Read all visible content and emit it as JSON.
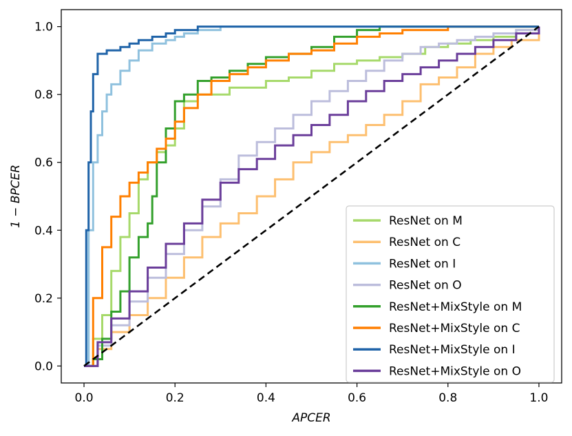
{
  "chart_data": {
    "type": "line",
    "title": "",
    "xlabel": "APCER",
    "ylabel": "1 − BPCER",
    "xlim": [
      -0.05,
      1.05
    ],
    "ylim": [
      -0.05,
      1.05
    ],
    "xticks": [
      0.0,
      0.2,
      0.4,
      0.6,
      0.8,
      1.0
    ],
    "yticks": [
      0.0,
      0.2,
      0.4,
      0.6,
      0.8,
      1.0
    ],
    "xtick_labels": [
      "0.0",
      "0.2",
      "0.4",
      "0.6",
      "0.8",
      "1.0"
    ],
    "ytick_labels": [
      "0.0",
      "0.2",
      "0.4",
      "0.6",
      "0.8",
      "1.0"
    ],
    "grid": false,
    "legend_position": "lower-right",
    "series": [
      {
        "name": "ResNet on M",
        "color": "#a6d96a",
        "x": [
          0,
          0.02,
          0.04,
          0.06,
          0.08,
          0.1,
          0.12,
          0.14,
          0.16,
          0.18,
          0.2,
          0.22,
          0.25,
          0.28,
          0.32,
          0.36,
          0.4,
          0.45,
          0.5,
          0.55,
          0.6,
          0.65,
          0.7,
          0.75,
          0.8,
          0.85,
          0.9,
          0.95,
          1.0
        ],
        "y": [
          0,
          0.08,
          0.15,
          0.28,
          0.38,
          0.45,
          0.55,
          0.6,
          0.63,
          0.65,
          0.7,
          0.78,
          0.8,
          0.8,
          0.82,
          0.82,
          0.84,
          0.85,
          0.87,
          0.89,
          0.9,
          0.91,
          0.92,
          0.94,
          0.95,
          0.96,
          0.97,
          0.99,
          1.0
        ]
      },
      {
        "name": "ResNet on C",
        "color": "#fdbf6f",
        "x": [
          0,
          0.03,
          0.06,
          0.1,
          0.14,
          0.18,
          0.22,
          0.26,
          0.3,
          0.34,
          0.38,
          0.42,
          0.46,
          0.5,
          0.54,
          0.58,
          0.62,
          0.66,
          0.7,
          0.74,
          0.78,
          0.82,
          0.86,
          0.9,
          0.94,
          1.0
        ],
        "y": [
          0,
          0.05,
          0.1,
          0.15,
          0.2,
          0.26,
          0.32,
          0.38,
          0.42,
          0.45,
          0.5,
          0.55,
          0.6,
          0.63,
          0.66,
          0.68,
          0.71,
          0.74,
          0.78,
          0.83,
          0.85,
          0.88,
          0.92,
          0.94,
          0.96,
          1.0
        ]
      },
      {
        "name": "ResNet on I",
        "color": "#8fc1de",
        "x": [
          0,
          0.01,
          0.02,
          0.03,
          0.04,
          0.05,
          0.06,
          0.08,
          0.1,
          0.12,
          0.15,
          0.18,
          0.2,
          0.22,
          0.25,
          0.3,
          1.0
        ],
        "y": [
          0,
          0.4,
          0.6,
          0.68,
          0.75,
          0.8,
          0.83,
          0.87,
          0.9,
          0.93,
          0.95,
          0.96,
          0.97,
          0.98,
          0.99,
          1.0,
          1.0
        ]
      },
      {
        "name": "ResNet on O",
        "color": "#bcbddc",
        "x": [
          0,
          0.03,
          0.06,
          0.1,
          0.14,
          0.18,
          0.22,
          0.26,
          0.3,
          0.34,
          0.38,
          0.42,
          0.46,
          0.5,
          0.54,
          0.58,
          0.62,
          0.66,
          0.7,
          0.74,
          0.78,
          0.82,
          0.86,
          0.9,
          0.95,
          1.0
        ],
        "y": [
          0,
          0.06,
          0.12,
          0.19,
          0.26,
          0.33,
          0.4,
          0.47,
          0.55,
          0.62,
          0.66,
          0.7,
          0.74,
          0.78,
          0.81,
          0.84,
          0.87,
          0.9,
          0.92,
          0.94,
          0.95,
          0.96,
          0.97,
          0.98,
          0.99,
          1.0
        ]
      },
      {
        "name": "ResNet+MixStyle on M",
        "color": "#33a02c",
        "x": [
          0,
          0.02,
          0.04,
          0.06,
          0.08,
          0.1,
          0.12,
          0.14,
          0.15,
          0.16,
          0.18,
          0.2,
          0.22,
          0.25,
          0.28,
          0.32,
          0.36,
          0.4,
          0.45,
          0.5,
          0.55,
          0.6,
          0.65,
          0.7,
          0.8,
          0.9,
          1.0
        ],
        "y": [
          0,
          0.02,
          0.08,
          0.16,
          0.22,
          0.32,
          0.38,
          0.42,
          0.5,
          0.6,
          0.7,
          0.78,
          0.8,
          0.84,
          0.85,
          0.87,
          0.89,
          0.91,
          0.92,
          0.94,
          0.97,
          0.99,
          1.0,
          1.0,
          1.0,
          1.0,
          1.0
        ]
      },
      {
        "name": "ResNet+MixStyle on C",
        "color": "#ff7f00",
        "x": [
          0,
          0.02,
          0.04,
          0.06,
          0.08,
          0.1,
          0.12,
          0.14,
          0.16,
          0.18,
          0.2,
          0.22,
          0.25,
          0.28,
          0.32,
          0.36,
          0.4,
          0.45,
          0.5,
          0.55,
          0.6,
          0.65,
          0.7,
          0.8,
          0.9,
          1.0
        ],
        "y": [
          0,
          0.2,
          0.35,
          0.44,
          0.5,
          0.54,
          0.57,
          0.6,
          0.64,
          0.67,
          0.72,
          0.76,
          0.8,
          0.84,
          0.86,
          0.88,
          0.9,
          0.92,
          0.93,
          0.95,
          0.97,
          0.98,
          0.99,
          1.0,
          1.0,
          1.0
        ]
      },
      {
        "name": "ResNet+MixStyle on I",
        "color": "#1f63a8",
        "x": [
          0,
          0.005,
          0.01,
          0.015,
          0.02,
          0.03,
          0.05,
          0.08,
          0.1,
          0.12,
          0.15,
          0.18,
          0.2,
          0.25,
          1.0
        ],
        "y": [
          0,
          0.4,
          0.6,
          0.75,
          0.86,
          0.92,
          0.93,
          0.94,
          0.95,
          0.96,
          0.97,
          0.98,
          0.99,
          1.0,
          1.0
        ]
      },
      {
        "name": "ResNet+MixStyle on O",
        "color": "#6a3d9a",
        "x": [
          0,
          0.03,
          0.06,
          0.1,
          0.14,
          0.18,
          0.22,
          0.26,
          0.3,
          0.34,
          0.38,
          0.42,
          0.46,
          0.5,
          0.54,
          0.58,
          0.62,
          0.66,
          0.7,
          0.74,
          0.78,
          0.82,
          0.86,
          0.9,
          0.95,
          1.0
        ],
        "y": [
          0,
          0.07,
          0.14,
          0.22,
          0.29,
          0.36,
          0.42,
          0.49,
          0.54,
          0.58,
          0.61,
          0.65,
          0.68,
          0.71,
          0.74,
          0.78,
          0.81,
          0.84,
          0.86,
          0.88,
          0.9,
          0.92,
          0.94,
          0.96,
          0.98,
          1.0
        ]
      }
    ],
    "reference_line": {
      "x": [
        0,
        1
      ],
      "y": [
        0,
        1
      ],
      "color": "#000000",
      "style": "dashed"
    }
  }
}
